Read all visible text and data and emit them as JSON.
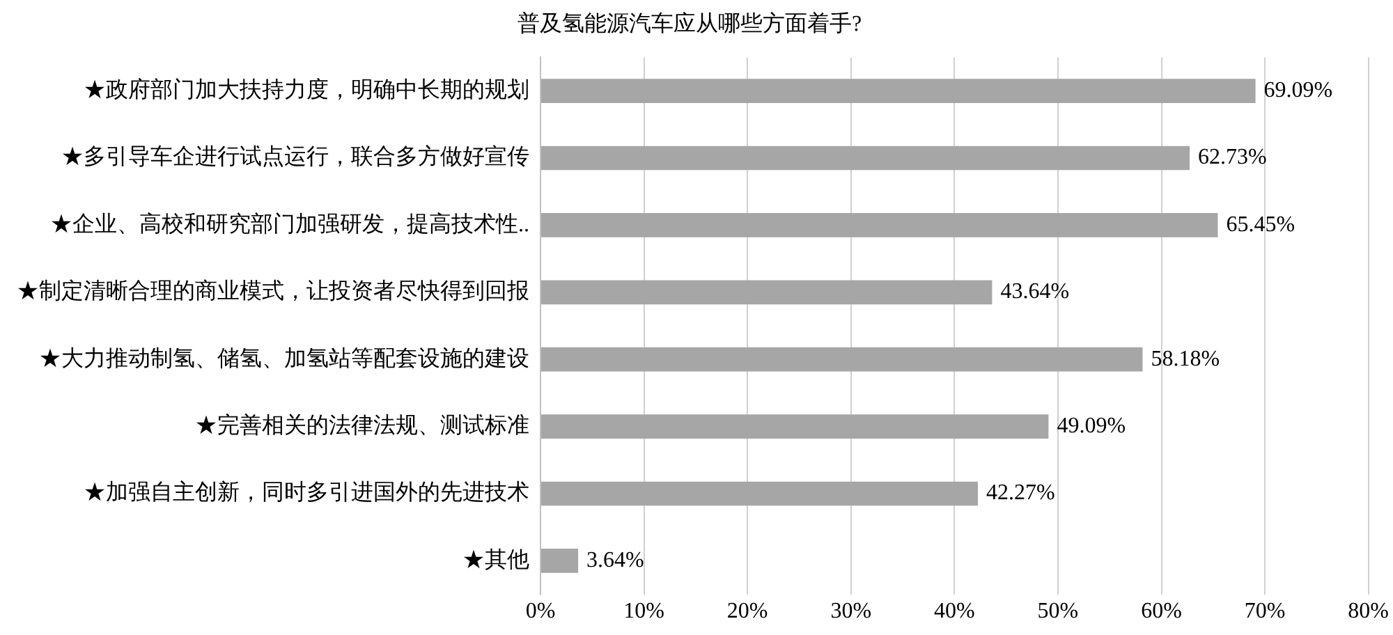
{
  "chart_data": {
    "type": "bar",
    "orientation": "horizontal",
    "title": "普及氢能源汽车应从哪些方面着手?",
    "categories": [
      "★政府部门加大扶持力度，明确中长期的规划",
      "★多引导车企进行试点运行，联合多方做好宣传",
      "★企业、高校和研究部门加强研发，提高技术性..",
      "★制定清晰合理的商业模式，让投资者尽快得到回报",
      "★大力推动制氢、储氢、加氢站等配套设施的建设",
      "★完善相关的法律法规、测试标准",
      "★加强自主创新，同时多引进国外的先进技术",
      "★其他"
    ],
    "values": [
      69.09,
      62.73,
      65.45,
      43.64,
      58.18,
      49.09,
      42.27,
      3.64
    ],
    "value_labels": [
      "69.09%",
      "62.73%",
      "65.45%",
      "43.64%",
      "58.18%",
      "49.09%",
      "42.27%",
      "3.64%"
    ],
    "color": "#a6a6a6",
    "xlim": [
      0,
      80
    ],
    "xticks": [
      {
        "value": 0,
        "label": "0%"
      },
      {
        "value": 10,
        "label": "10%"
      },
      {
        "value": 20,
        "label": "20%"
      },
      {
        "value": 30,
        "label": "30%"
      },
      {
        "value": 40,
        "label": "40%"
      },
      {
        "value": 50,
        "label": "50%"
      },
      {
        "value": 60,
        "label": "60%"
      },
      {
        "value": 70,
        "label": "70%"
      },
      {
        "value": 80,
        "label": "80%"
      }
    ],
    "grid": "x"
  }
}
